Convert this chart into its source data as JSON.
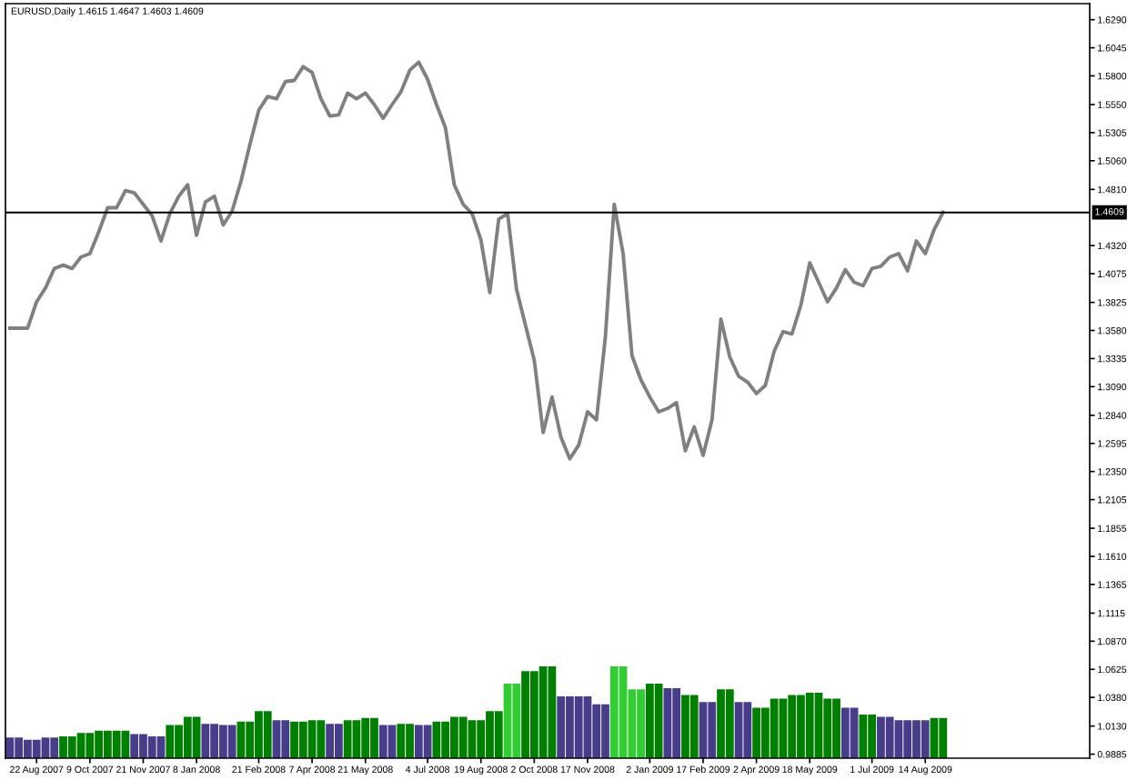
{
  "chart_data": {
    "type": "line",
    "title": "EURUSD,Daily 1.4615 1.4647 1.4603 1.4609",
    "ylim": [
      0.985,
      1.643
    ],
    "yticks": [
      {
        "value": 1.629,
        "label": "1.6290"
      },
      1.6045,
      {
        "value": 1.58,
        "label": "1.5800"
      },
      {
        "value": 1.555,
        "label": "1.5550"
      },
      1.5305,
      {
        "value": 1.506,
        "label": "1.5060"
      },
      {
        "value": 1.481,
        "label": "1.4810"
      },
      {
        "value": 1.432,
        "label": "1.4320"
      },
      1.4075,
      1.3825,
      {
        "value": 1.358,
        "label": "1.3580"
      },
      1.3335,
      {
        "value": 1.309,
        "label": "1.3090"
      },
      {
        "value": 1.284,
        "label": "1.2840"
      },
      1.2595,
      {
        "value": 1.235,
        "label": "1.2350"
      },
      1.2105,
      1.1855,
      {
        "value": 1.161,
        "label": "1.1610"
      },
      1.1365,
      1.1115,
      {
        "value": 1.087,
        "label": "1.0870"
      },
      1.0625,
      {
        "value": 1.038,
        "label": "1.0380"
      },
      {
        "value": 1.013,
        "label": "1.0130"
      },
      0.9885
    ],
    "categories": [
      null,
      null,
      null,
      "22 Aug 2007",
      null,
      null,
      null,
      null,
      null,
      "9 Oct 2007",
      null,
      null,
      null,
      null,
      null,
      "21 Nov 2007",
      null,
      null,
      null,
      null,
      null,
      "8 Jan 2008",
      null,
      null,
      null,
      null,
      null,
      null,
      "21 Feb 2008",
      null,
      null,
      null,
      null,
      null,
      "7 Apr 2008",
      null,
      null,
      null,
      null,
      null,
      "21 May 2008",
      null,
      null,
      null,
      null,
      null,
      null,
      "4 Jul 2008",
      null,
      null,
      null,
      null,
      null,
      "19 Aug 2008",
      null,
      null,
      null,
      null,
      null,
      "2 Oct 2008",
      null,
      null,
      null,
      null,
      null,
      "17 Nov 2008",
      null,
      null,
      null,
      null,
      null,
      null,
      "2 Jan 2009",
      null,
      null,
      null,
      null,
      null,
      "17 Feb 2009",
      null,
      null,
      null,
      null,
      null,
      "2 Apr 2009",
      null,
      null,
      null,
      null,
      null,
      "18 May 2009",
      null,
      null,
      null,
      null,
      null,
      null,
      "1 Jul 2009",
      null,
      null,
      null,
      null,
      null,
      "14 Aug 2009",
      null,
      null,
      null,
      null,
      null,
      null,
      null,
      null,
      null,
      null,
      null,
      null,
      null,
      null,
      null,
      null,
      null,
      null
    ],
    "grid": false,
    "legend": false,
    "ref_lines": [
      {
        "axis": "y",
        "value": 1.4609,
        "label": "1.4609",
        "color": "#000000"
      }
    ],
    "series": [
      {
        "type": "bar",
        "values": [
          1.003,
          1.003,
          1.001,
          1.001,
          1.003,
          1.003,
          1.004,
          1.004,
          1.007,
          1.007,
          1.009,
          1.009,
          1.009,
          1.009,
          1.006,
          1.006,
          1.004,
          1.004,
          1.014,
          1.014,
          1.021,
          1.021,
          1.015,
          1.015,
          1.014,
          1.014,
          1.017,
          1.017,
          1.026,
          1.026,
          1.018,
          1.018,
          1.017,
          1.017,
          1.018,
          1.018,
          1.015,
          1.015,
          1.018,
          1.018,
          1.02,
          1.02,
          1.014,
          1.014,
          1.015,
          1.015,
          1.014,
          1.014,
          1.017,
          1.017,
          1.021,
          1.021,
          1.018,
          1.018,
          1.026,
          1.026,
          1.05,
          1.05,
          1.061,
          1.061,
          1.065,
          1.065,
          1.039,
          1.039,
          1.039,
          1.039,
          1.032,
          1.032,
          1.065,
          1.065,
          1.045,
          1.045,
          1.05,
          1.05,
          1.046,
          1.046,
          1.04,
          1.04,
          1.034,
          1.034,
          1.045,
          1.045,
          1.034,
          1.034,
          1.029,
          1.029,
          1.037,
          1.037,
          1.04,
          1.04,
          1.042,
          1.042,
          1.037,
          1.037,
          1.029,
          1.029,
          1.023,
          1.023,
          1.021,
          1.021,
          1.018,
          1.018,
          1.018,
          1.018,
          1.02,
          1.02,
          null,
          null,
          null,
          null,
          null,
          null,
          null,
          null,
          null,
          null,
          null,
          null,
          null,
          null,
          null,
          null
        ],
        "colors": [
          "#483d8b",
          "#483d8b",
          "#483d8b",
          "#483d8b",
          "#483d8b",
          "#483d8b",
          "#008000",
          "#008000",
          "#008000",
          "#008000",
          "#008000",
          "#008000",
          "#008000",
          "#008000",
          "#483d8b",
          "#483d8b",
          "#483d8b",
          "#483d8b",
          "#008000",
          "#008000",
          "#008000",
          "#008000",
          "#483d8b",
          "#483d8b",
          "#483d8b",
          "#483d8b",
          "#008000",
          "#008000",
          "#008000",
          "#008000",
          "#483d8b",
          "#483d8b",
          "#008000",
          "#008000",
          "#008000",
          "#008000",
          "#483d8b",
          "#483d8b",
          "#008000",
          "#008000",
          "#008000",
          "#008000",
          "#483d8b",
          "#483d8b",
          "#008000",
          "#008000",
          "#483d8b",
          "#483d8b",
          "#008000",
          "#008000",
          "#008000",
          "#008000",
          "#008000",
          "#008000",
          "#008000",
          "#008000",
          "#32cd32",
          "#32cd32",
          "#008000",
          "#008000",
          "#008000",
          "#008000",
          "#483d8b",
          "#483d8b",
          "#483d8b",
          "#483d8b",
          "#483d8b",
          "#483d8b",
          "#32cd32",
          "#32cd32",
          "#32cd32",
          "#32cd32",
          "#008000",
          "#008000",
          "#483d8b",
          "#483d8b",
          "#008000",
          "#008000",
          "#483d8b",
          "#483d8b",
          "#008000",
          "#008000",
          "#483d8b",
          "#483d8b",
          "#008000",
          "#008000",
          "#008000",
          "#008000",
          "#008000",
          "#008000",
          "#008000",
          "#008000",
          "#008000",
          "#008000",
          "#483d8b",
          "#483d8b",
          "#008000",
          "#008000",
          "#483d8b",
          "#483d8b",
          "#483d8b",
          "#483d8b",
          "#483d8b",
          "#483d8b",
          "#008000",
          "#008000",
          "#483d8b",
          "#483d8b",
          "#483d8b",
          "#483d8b",
          "#483d8b",
          "#483d8b",
          "#483d8b",
          "#483d8b",
          "#483d8b",
          "#483d8b",
          "#483d8b",
          "#483d8b",
          "#483d8b",
          "#483d8b",
          "#483d8b",
          "#483d8b"
        ]
      },
      {
        "color": "#808080",
        "values": [
          1.36,
          1.36,
          1.36,
          1.383,
          1.395,
          1.412,
          1.415,
          1.412,
          1.422,
          1.425,
          1.444,
          1.465,
          1.465,
          1.48,
          1.478,
          1.468,
          1.458,
          1.436,
          1.46,
          1.475,
          1.485,
          1.441,
          1.47,
          1.475,
          1.45,
          1.462,
          1.488,
          1.52,
          1.55,
          1.562,
          1.56,
          1.575,
          1.576,
          1.588,
          1.583,
          1.56,
          1.545,
          1.546,
          1.565,
          1.56,
          1.565,
          1.555,
          1.543,
          1.555,
          1.566,
          1.585,
          1.592,
          1.577,
          1.555,
          1.535,
          1.485,
          1.468,
          1.46,
          1.437,
          1.391,
          1.455,
          1.46,
          1.394,
          1.363,
          1.332,
          1.269,
          1.3,
          1.265,
          1.246,
          1.258,
          1.287,
          1.28,
          1.352,
          1.468,
          1.425,
          1.336,
          1.315,
          1.3,
          1.287,
          1.29,
          1.295,
          1.253,
          1.274,
          1.249,
          1.28,
          1.368,
          1.335,
          1.318,
          1.313,
          1.303,
          1.31,
          1.34,
          1.357,
          1.355,
          1.38,
          1.417,
          1.4,
          1.383,
          1.395,
          1.411,
          1.4,
          1.397,
          1.412,
          1.414,
          1.422,
          1.425,
          1.41,
          1.436,
          1.425,
          1.446,
          1.461,
          null,
          null,
          null,
          null,
          null,
          null,
          null,
          null,
          null,
          null,
          null,
          null,
          null,
          null,
          null,
          null
        ]
      }
    ]
  }
}
